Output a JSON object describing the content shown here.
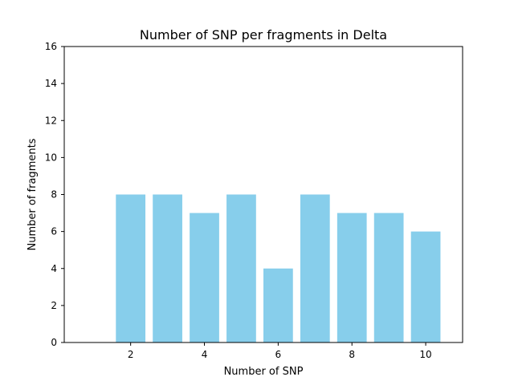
{
  "chart_data": {
    "type": "bar",
    "title": "Number of SNP per fragments in Delta",
    "xlabel": "Number of SNP",
    "ylabel": "Number of fragments",
    "x": [
      2,
      3,
      4,
      5,
      6,
      7,
      8,
      9,
      10
    ],
    "values": [
      8,
      8,
      7,
      8,
      4,
      8,
      7,
      7,
      6
    ],
    "xlim": [
      0.2,
      11.0
    ],
    "ylim": [
      0,
      16
    ],
    "xticks": [
      2,
      4,
      6,
      8,
      10
    ],
    "yticks": [
      0,
      2,
      4,
      6,
      8,
      10,
      12,
      14,
      16
    ],
    "bar_color": "#87ceeb",
    "grid": false,
    "legend": "none"
  }
}
